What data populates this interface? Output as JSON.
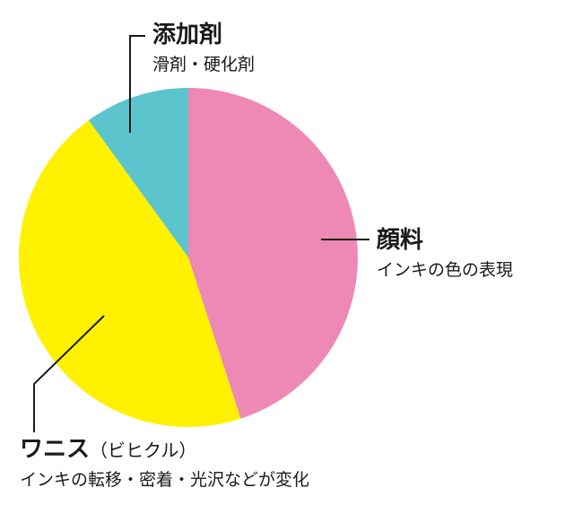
{
  "chart_data": {
    "type": "pie",
    "title": "",
    "start_angle_deg": 0,
    "direction": "clockwise",
    "slices": [
      {
        "key": "pigment",
        "label": "顔料",
        "sublabel": "",
        "description": "インキの色の表現",
        "value": 45,
        "color": "#ee88b4"
      },
      {
        "key": "varnish",
        "label": "ワニス",
        "sublabel": "（ビヒクル）",
        "description": "インキの転移・密着・光沢などが変化",
        "value": 45,
        "color": "#fff100"
      },
      {
        "key": "additive",
        "label": "添加剤",
        "sublabel": "",
        "description": "滑剤・硬化剤",
        "value": 10,
        "color": "#5cc4cc"
      }
    ],
    "leader_line_color": "#1a1a1a"
  }
}
